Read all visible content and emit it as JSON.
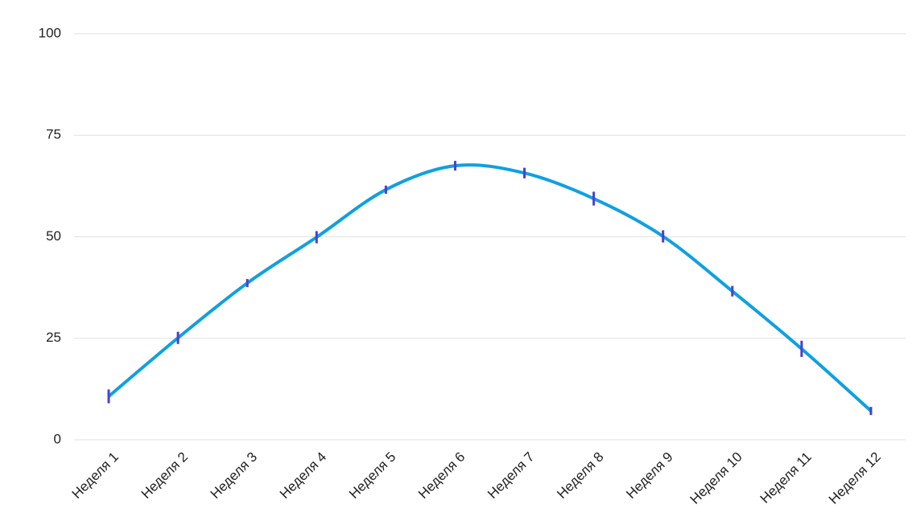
{
  "chart_data": {
    "type": "line",
    "categories": [
      "Неделя 1",
      "Неделя 2",
      "Неделя 3",
      "Неделя 4",
      "Неделя 5",
      "Неделя 6",
      "Неделя 7",
      "Неделя 8",
      "Неделя 9",
      "Неделя 10",
      "Неделя 11",
      "Неделя 12"
    ],
    "series": [
      {
        "color": "#0fa0e2",
        "values": [
          10.7,
          25.1,
          38.6,
          49.9,
          61.6,
          67.5,
          65.7,
          59.4,
          50.1,
          36.6,
          22.4,
          7.1
        ],
        "errors": [
          1.7,
          1.5,
          1,
          1.5,
          1,
          1.2,
          1.3,
          1.7,
          1.5,
          1.3,
          2,
          1
        ],
        "error_color": "#4a3fd0"
      }
    ],
    "ylim": [
      0,
      100
    ],
    "yticks": [
      0,
      25,
      50,
      75,
      100
    ],
    "grid": true
  }
}
